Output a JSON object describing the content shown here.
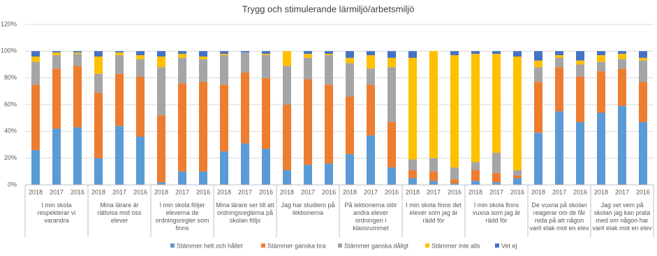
{
  "chart_data": {
    "type": "stacked_bar",
    "title": "Trygg och stimulerande lärmiljö/arbetsmiljö",
    "categories": [
      "2018",
      "2017",
      "2016",
      "2018",
      "2017",
      "2016",
      "2018",
      "2017",
      "2016",
      "2018",
      "2017",
      "2016",
      "2018",
      "2017",
      "2016",
      "2018",
      "2017",
      "2016",
      "2018",
      "2017",
      "2016",
      "2018",
      "2017",
      "2016",
      "2018",
      "2017",
      "2016",
      "2018",
      "2017",
      "2016"
    ],
    "category_groups": [
      "I min skola respekterar vi varandra",
      "Mina lärare är rättvisa mot oss elever",
      "I min skola följer eleverna de ordningsregler som finns",
      "Mina lärare ser till att ordningsreglerna på skolan följs",
      "Jag har studiero på lektionerna",
      "På lektionerna stör andra elever ordningen i klassrummet",
      "I min skola finns det elever som jag är rädd för",
      "I min skola finns vuxna som jag är rädd för",
      "De vuxna på skolan reagerar om de får reda på att någon varit elak mot en elev",
      "Jag vet vem på skolan jag kan prata med om någon har varit elak mot en elev"
    ],
    "series": [
      {
        "name": "Stämmer helt och hållet",
        "color": "#5b9bd5",
        "values": [
          26,
          42,
          43,
          20,
          44,
          36,
          2,
          10,
          10,
          25,
          31,
          27,
          11,
          15,
          16,
          23,
          37,
          13,
          5,
          3,
          1,
          3,
          2,
          5,
          39,
          55,
          47,
          54,
          59,
          47
        ]
      },
      {
        "name": "Stämmer ganska bra",
        "color": "#ed7d31",
        "values": [
          49,
          45,
          46,
          49,
          39,
          45,
          50,
          66,
          67,
          50,
          53,
          53,
          49,
          64,
          59,
          43,
          38,
          34,
          6,
          7,
          3,
          8,
          7,
          2,
          38,
          33,
          34,
          31,
          28,
          30
        ]
      },
      {
        "name": "Stämmer ganska dåligt",
        "color": "#a5a5a5",
        "values": [
          17,
          10,
          9,
          14,
          14,
          13,
          36,
          19,
          17,
          22,
          15,
          17,
          29,
          16,
          22,
          25,
          12,
          41,
          8,
          10,
          9,
          6,
          15,
          4,
          11,
          7,
          9,
          7,
          7,
          16
        ]
      },
      {
        "name": "Stämmer inte alls",
        "color": "#ffc000",
        "values": [
          4,
          2,
          1,
          13,
          2,
          3,
          8,
          3,
          2,
          1,
          0,
          1,
          11,
          3,
          1,
          4,
          10,
          7,
          76,
          80,
          84,
          81,
          74,
          85,
          5,
          2,
          3,
          5,
          4,
          2
        ]
      },
      {
        "name": "Vet ej",
        "color": "#4472c4",
        "values": [
          4,
          1,
          1,
          4,
          1,
          3,
          4,
          2,
          4,
          2,
          1,
          2,
          0,
          2,
          2,
          5,
          3,
          5,
          5,
          0,
          3,
          2,
          2,
          4,
          7,
          3,
          7,
          3,
          2,
          5
        ]
      }
    ],
    "ylim": [
      0,
      120
    ],
    "yticks": [
      {
        "value": 0,
        "label": "0%"
      },
      {
        "value": 20,
        "label": "20%"
      },
      {
        "value": 40,
        "label": "40%"
      },
      {
        "value": 60,
        "label": "60%"
      },
      {
        "value": 80,
        "label": "80%"
      },
      {
        "value": 100,
        "label": "100%"
      },
      {
        "value": 120,
        "label": "120%"
      }
    ],
    "grid": true
  }
}
